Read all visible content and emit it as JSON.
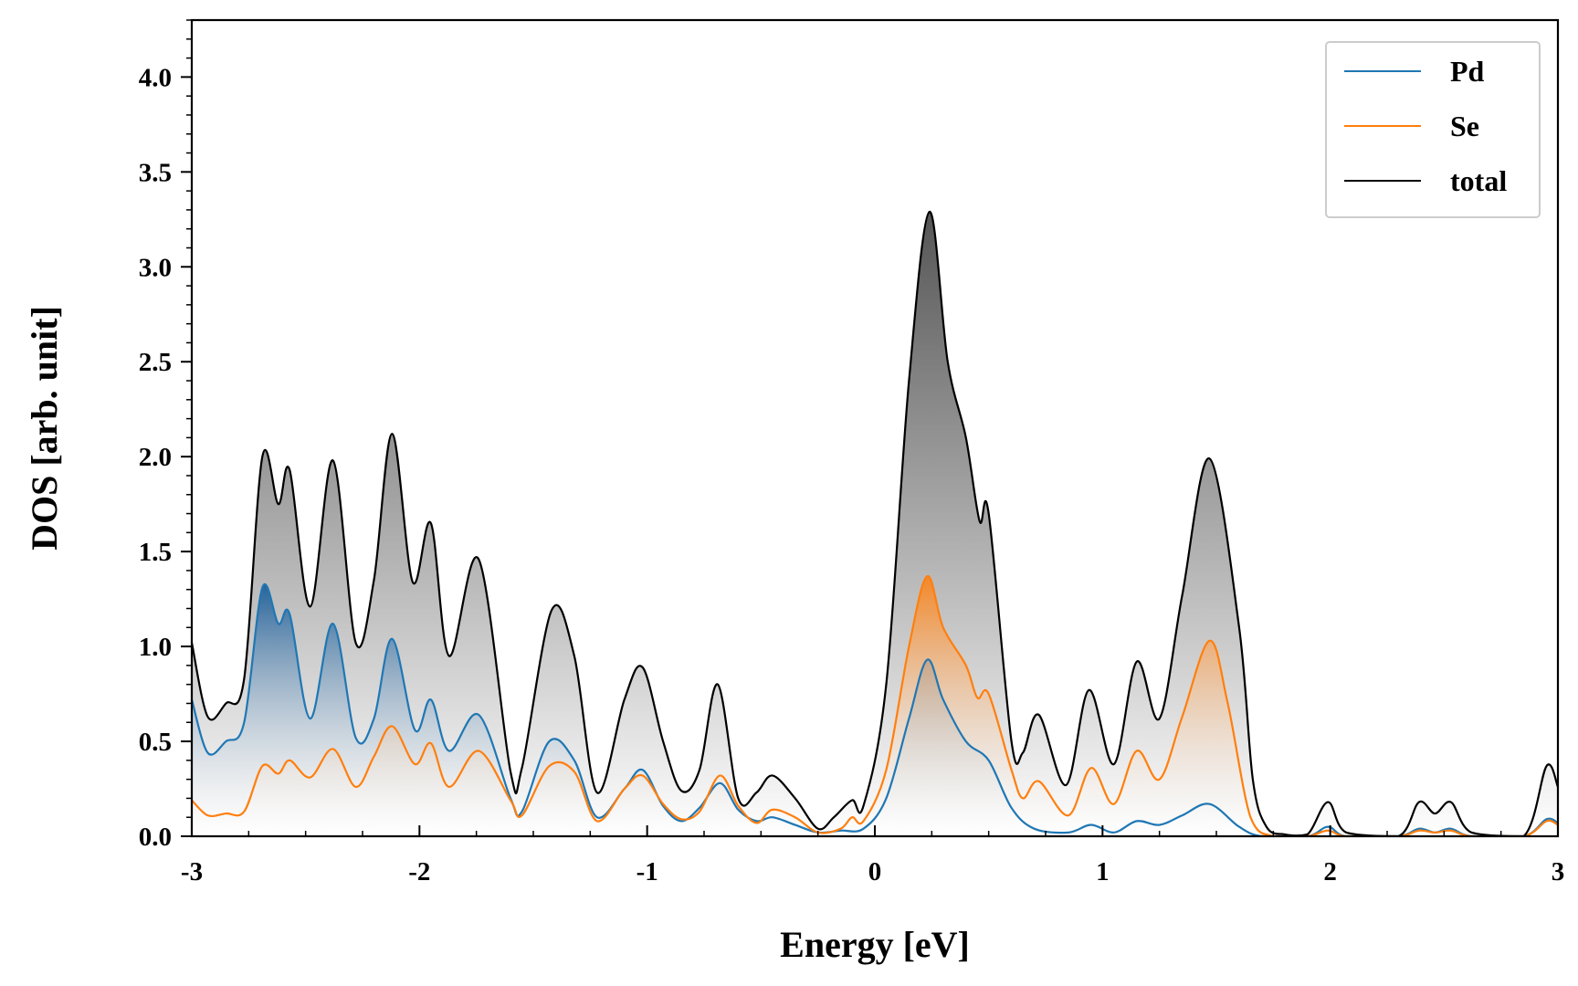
{
  "chart_data": {
    "type": "line",
    "title": "",
    "xlabel": "Energy [eV]",
    "ylabel": "DOS [arb. unit]",
    "xlim": [
      -3,
      3
    ],
    "ylim": [
      0,
      4.3
    ],
    "grid": false,
    "legend_position": "top-right",
    "x_ticks": [
      -3,
      -2,
      -1,
      0,
      1,
      2,
      3
    ],
    "x_tick_labels": [
      "-3",
      "-2",
      "-1",
      "0",
      "1",
      "2",
      "3"
    ],
    "y_ticks": [
      0,
      0.5,
      1.0,
      1.5,
      2.0,
      2.5,
      3.0,
      3.5,
      4.0
    ],
    "y_tick_labels": [
      "0.0",
      "0.5",
      "1.0",
      "1.5",
      "2.0",
      "2.5",
      "3.0",
      "3.5",
      "4.0"
    ],
    "series": [
      {
        "name": "Pd",
        "color": "#1f77b4",
        "fill": true,
        "points": [
          [
            -3.0,
            0.72
          ],
          [
            -2.93,
            0.44
          ],
          [
            -2.85,
            0.5
          ],
          [
            -2.77,
            0.6
          ],
          [
            -2.69,
            1.31
          ],
          [
            -2.62,
            1.12
          ],
          [
            -2.57,
            1.17
          ],
          [
            -2.48,
            0.62
          ],
          [
            -2.38,
            1.12
          ],
          [
            -2.28,
            0.52
          ],
          [
            -2.2,
            0.62
          ],
          [
            -2.12,
            1.04
          ],
          [
            -2.02,
            0.56
          ],
          [
            -1.95,
            0.72
          ],
          [
            -1.87,
            0.45
          ],
          [
            -1.74,
            0.64
          ],
          [
            -1.6,
            0.2
          ],
          [
            -1.55,
            0.13
          ],
          [
            -1.43,
            0.5
          ],
          [
            -1.32,
            0.4
          ],
          [
            -1.22,
            0.1
          ],
          [
            -1.1,
            0.25
          ],
          [
            -1.02,
            0.35
          ],
          [
            -0.93,
            0.16
          ],
          [
            -0.85,
            0.08
          ],
          [
            -0.77,
            0.15
          ],
          [
            -0.68,
            0.28
          ],
          [
            -0.6,
            0.14
          ],
          [
            -0.52,
            0.08
          ],
          [
            -0.45,
            0.1
          ],
          [
            -0.35,
            0.06
          ],
          [
            -0.25,
            0.02
          ],
          [
            -0.15,
            0.03
          ],
          [
            -0.05,
            0.04
          ],
          [
            0.05,
            0.2
          ],
          [
            0.15,
            0.62
          ],
          [
            0.23,
            0.93
          ],
          [
            0.3,
            0.72
          ],
          [
            0.4,
            0.5
          ],
          [
            0.5,
            0.4
          ],
          [
            0.6,
            0.15
          ],
          [
            0.7,
            0.04
          ],
          [
            0.85,
            0.02
          ],
          [
            0.95,
            0.06
          ],
          [
            1.05,
            0.02
          ],
          [
            1.15,
            0.08
          ],
          [
            1.25,
            0.06
          ],
          [
            1.35,
            0.11
          ],
          [
            1.47,
            0.17
          ],
          [
            1.6,
            0.05
          ],
          [
            1.7,
            0.0
          ],
          [
            1.9,
            0.0
          ],
          [
            1.99,
            0.05
          ],
          [
            2.07,
            0.0
          ],
          [
            2.3,
            0.0
          ],
          [
            2.39,
            0.04
          ],
          [
            2.46,
            0.02
          ],
          [
            2.53,
            0.04
          ],
          [
            2.62,
            0.0
          ],
          [
            2.85,
            0.0
          ],
          [
            2.95,
            0.09
          ],
          [
            3.0,
            0.07
          ]
        ]
      },
      {
        "name": "Se",
        "color": "#ff7f0e",
        "fill": true,
        "points": [
          [
            -3.0,
            0.19
          ],
          [
            -2.93,
            0.11
          ],
          [
            -2.85,
            0.12
          ],
          [
            -2.77,
            0.13
          ],
          [
            -2.69,
            0.37
          ],
          [
            -2.62,
            0.33
          ],
          [
            -2.57,
            0.4
          ],
          [
            -2.48,
            0.31
          ],
          [
            -2.38,
            0.46
          ],
          [
            -2.28,
            0.26
          ],
          [
            -2.2,
            0.42
          ],
          [
            -2.12,
            0.58
          ],
          [
            -2.02,
            0.38
          ],
          [
            -1.95,
            0.49
          ],
          [
            -1.87,
            0.26
          ],
          [
            -1.74,
            0.45
          ],
          [
            -1.6,
            0.19
          ],
          [
            -1.55,
            0.11
          ],
          [
            -1.43,
            0.37
          ],
          [
            -1.32,
            0.34
          ],
          [
            -1.22,
            0.08
          ],
          [
            -1.1,
            0.25
          ],
          [
            -1.02,
            0.32
          ],
          [
            -0.93,
            0.17
          ],
          [
            -0.85,
            0.09
          ],
          [
            -0.77,
            0.13
          ],
          [
            -0.68,
            0.32
          ],
          [
            -0.6,
            0.16
          ],
          [
            -0.52,
            0.07
          ],
          [
            -0.45,
            0.14
          ],
          [
            -0.35,
            0.1
          ],
          [
            -0.25,
            0.02
          ],
          [
            -0.15,
            0.04
          ],
          [
            -0.1,
            0.1
          ],
          [
            -0.05,
            0.08
          ],
          [
            0.05,
            0.35
          ],
          [
            0.15,
            1.0
          ],
          [
            0.23,
            1.37
          ],
          [
            0.3,
            1.1
          ],
          [
            0.4,
            0.9
          ],
          [
            0.45,
            0.73
          ],
          [
            0.5,
            0.75
          ],
          [
            0.6,
            0.35
          ],
          [
            0.65,
            0.2
          ],
          [
            0.72,
            0.29
          ],
          [
            0.85,
            0.11
          ],
          [
            0.95,
            0.36
          ],
          [
            1.05,
            0.17
          ],
          [
            1.15,
            0.45
          ],
          [
            1.25,
            0.3
          ],
          [
            1.35,
            0.63
          ],
          [
            1.47,
            1.03
          ],
          [
            1.55,
            0.7
          ],
          [
            1.65,
            0.1
          ],
          [
            1.75,
            0.0
          ],
          [
            1.9,
            0.0
          ],
          [
            1.99,
            0.03
          ],
          [
            2.07,
            0.0
          ],
          [
            2.3,
            0.0
          ],
          [
            2.39,
            0.03
          ],
          [
            2.46,
            0.02
          ],
          [
            2.53,
            0.03
          ],
          [
            2.62,
            0.0
          ],
          [
            2.85,
            0.0
          ],
          [
            2.95,
            0.08
          ],
          [
            3.0,
            0.06
          ]
        ]
      },
      {
        "name": "total",
        "color": "#000000",
        "fill": true,
        "points": [
          [
            -3.0,
            1.02
          ],
          [
            -2.93,
            0.63
          ],
          [
            -2.85,
            0.7
          ],
          [
            -2.77,
            0.83
          ],
          [
            -2.69,
            2.0
          ],
          [
            -2.62,
            1.75
          ],
          [
            -2.57,
            1.93
          ],
          [
            -2.48,
            1.21
          ],
          [
            -2.38,
            1.98
          ],
          [
            -2.28,
            1.02
          ],
          [
            -2.2,
            1.35
          ],
          [
            -2.12,
            2.12
          ],
          [
            -2.03,
            1.34
          ],
          [
            -1.95,
            1.65
          ],
          [
            -1.87,
            0.95
          ],
          [
            -1.74,
            1.46
          ],
          [
            -1.6,
            0.34
          ],
          [
            -1.55,
            0.36
          ],
          [
            -1.42,
            1.19
          ],
          [
            -1.32,
            0.95
          ],
          [
            -1.22,
            0.23
          ],
          [
            -1.1,
            0.72
          ],
          [
            -1.02,
            0.89
          ],
          [
            -0.93,
            0.5
          ],
          [
            -0.85,
            0.24
          ],
          [
            -0.77,
            0.35
          ],
          [
            -0.69,
            0.8
          ],
          [
            -0.6,
            0.2
          ],
          [
            -0.52,
            0.23
          ],
          [
            -0.45,
            0.32
          ],
          [
            -0.35,
            0.2
          ],
          [
            -0.25,
            0.04
          ],
          [
            -0.18,
            0.1
          ],
          [
            -0.1,
            0.19
          ],
          [
            -0.05,
            0.16
          ],
          [
            0.05,
            0.8
          ],
          [
            0.15,
            2.4
          ],
          [
            0.24,
            3.29
          ],
          [
            0.32,
            2.5
          ],
          [
            0.4,
            2.1
          ],
          [
            0.46,
            1.66
          ],
          [
            0.5,
            1.7
          ],
          [
            0.6,
            0.5
          ],
          [
            0.65,
            0.44
          ],
          [
            0.72,
            0.64
          ],
          [
            0.84,
            0.27
          ],
          [
            0.94,
            0.77
          ],
          [
            1.05,
            0.38
          ],
          [
            1.15,
            0.92
          ],
          [
            1.25,
            0.62
          ],
          [
            1.35,
            1.27
          ],
          [
            1.47,
            1.99
          ],
          [
            1.6,
            1.1
          ],
          [
            1.66,
            0.3
          ],
          [
            1.72,
            0.05
          ],
          [
            1.8,
            0.01
          ],
          [
            1.9,
            0.01
          ],
          [
            1.99,
            0.18
          ],
          [
            2.07,
            0.02
          ],
          [
            2.3,
            0.0
          ],
          [
            2.39,
            0.18
          ],
          [
            2.46,
            0.12
          ],
          [
            2.53,
            0.18
          ],
          [
            2.62,
            0.02
          ],
          [
            2.85,
            0.0
          ],
          [
            2.95,
            0.37
          ],
          [
            3.0,
            0.26
          ]
        ]
      }
    ]
  }
}
